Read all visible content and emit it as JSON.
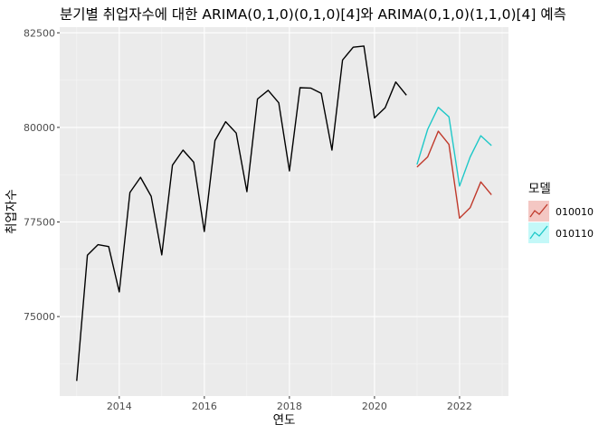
{
  "chart_data": {
    "type": "line",
    "title": "분기별 취업자수에 대한 ARIMA(0,1,0)(0,1,0)[4]와 ARIMA(0,1,0)(1,1,0)[4] 예측",
    "xlabel": "연도",
    "ylabel": "취업자수",
    "xlim": [
      2012.6,
      2023.15
    ],
    "ylim": [
      72900,
      82650
    ],
    "x_ticks": [
      2014,
      2016,
      2018,
      2020,
      2022
    ],
    "x_tick_labels": [
      "2014",
      "2016",
      "2018",
      "2020",
      "2022"
    ],
    "y_ticks": [
      75000,
      77500,
      80000,
      82500
    ],
    "y_tick_labels": [
      "75000",
      "77500",
      "80000",
      "82500"
    ],
    "grid": true,
    "legend": {
      "title": "모델",
      "position": "right"
    },
    "actual": {
      "color": "#000000",
      "x": [
        2013.0,
        2013.25,
        2013.5,
        2013.75,
        2014.0,
        2014.25,
        2014.5,
        2014.75,
        2015.0,
        2015.25,
        2015.5,
        2015.75,
        2016.0,
        2016.25,
        2016.5,
        2016.75,
        2017.0,
        2017.25,
        2017.5,
        2017.75,
        2018.0,
        2018.25,
        2018.5,
        2018.75,
        2019.0,
        2019.25,
        2019.5,
        2019.75,
        2020.0,
        2020.25,
        2020.5,
        2020.75
      ],
      "values": [
        73300,
        76620,
        76900,
        76850,
        75650,
        78280,
        78680,
        78180,
        76630,
        79000,
        79400,
        79080,
        77250,
        79650,
        80150,
        79850,
        78300,
        80750,
        80980,
        80650,
        78850,
        81050,
        81040,
        80900,
        79400,
        81780,
        82120,
        82150,
        80250,
        80520,
        81200,
        80850
      ]
    },
    "series": [
      {
        "name": "010010",
        "color": "#c0392b",
        "x": [
          2021.0,
          2021.25,
          2021.5,
          2021.75,
          2022.0,
          2022.25,
          2022.5,
          2022.75
        ],
        "values": [
          78950,
          79220,
          79900,
          79550,
          77600,
          77880,
          78560,
          78220
        ]
      },
      {
        "name": "010110",
        "color": "#1ec8c8",
        "x": [
          2021.0,
          2021.25,
          2021.5,
          2021.75,
          2022.0,
          2022.25,
          2022.5,
          2022.75
        ],
        "values": [
          79020,
          79950,
          80530,
          80280,
          78450,
          79220,
          79780,
          79520
        ]
      }
    ]
  }
}
